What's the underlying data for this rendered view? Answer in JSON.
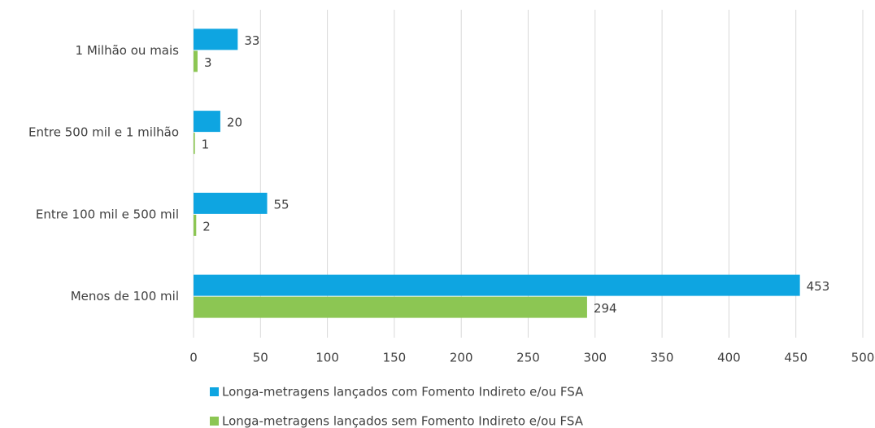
{
  "chart_data": {
    "type": "barh",
    "categories": [
      "1 Milhão ou mais",
      "Entre 500 mil e 1 milhão",
      "Entre 100 mil e 500 mil",
      "Menos de 100 mil"
    ],
    "series": [
      {
        "name": "Longa-metragens lançados com Fomento Indireto e/ou FSA",
        "color": "#0ea5e1",
        "values": [
          33,
          20,
          55,
          453
        ]
      },
      {
        "name": "Longa-metragens lançados sem Fomento Indireto e/ou FSA",
        "color": "#8cc653",
        "values": [
          3,
          1,
          2,
          294
        ]
      }
    ],
    "xlim": [
      0,
      500
    ],
    "xticks": [
      0,
      50,
      100,
      150,
      200,
      250,
      300,
      350,
      400,
      450,
      500
    ],
    "grid": true,
    "legend": "bottom"
  }
}
